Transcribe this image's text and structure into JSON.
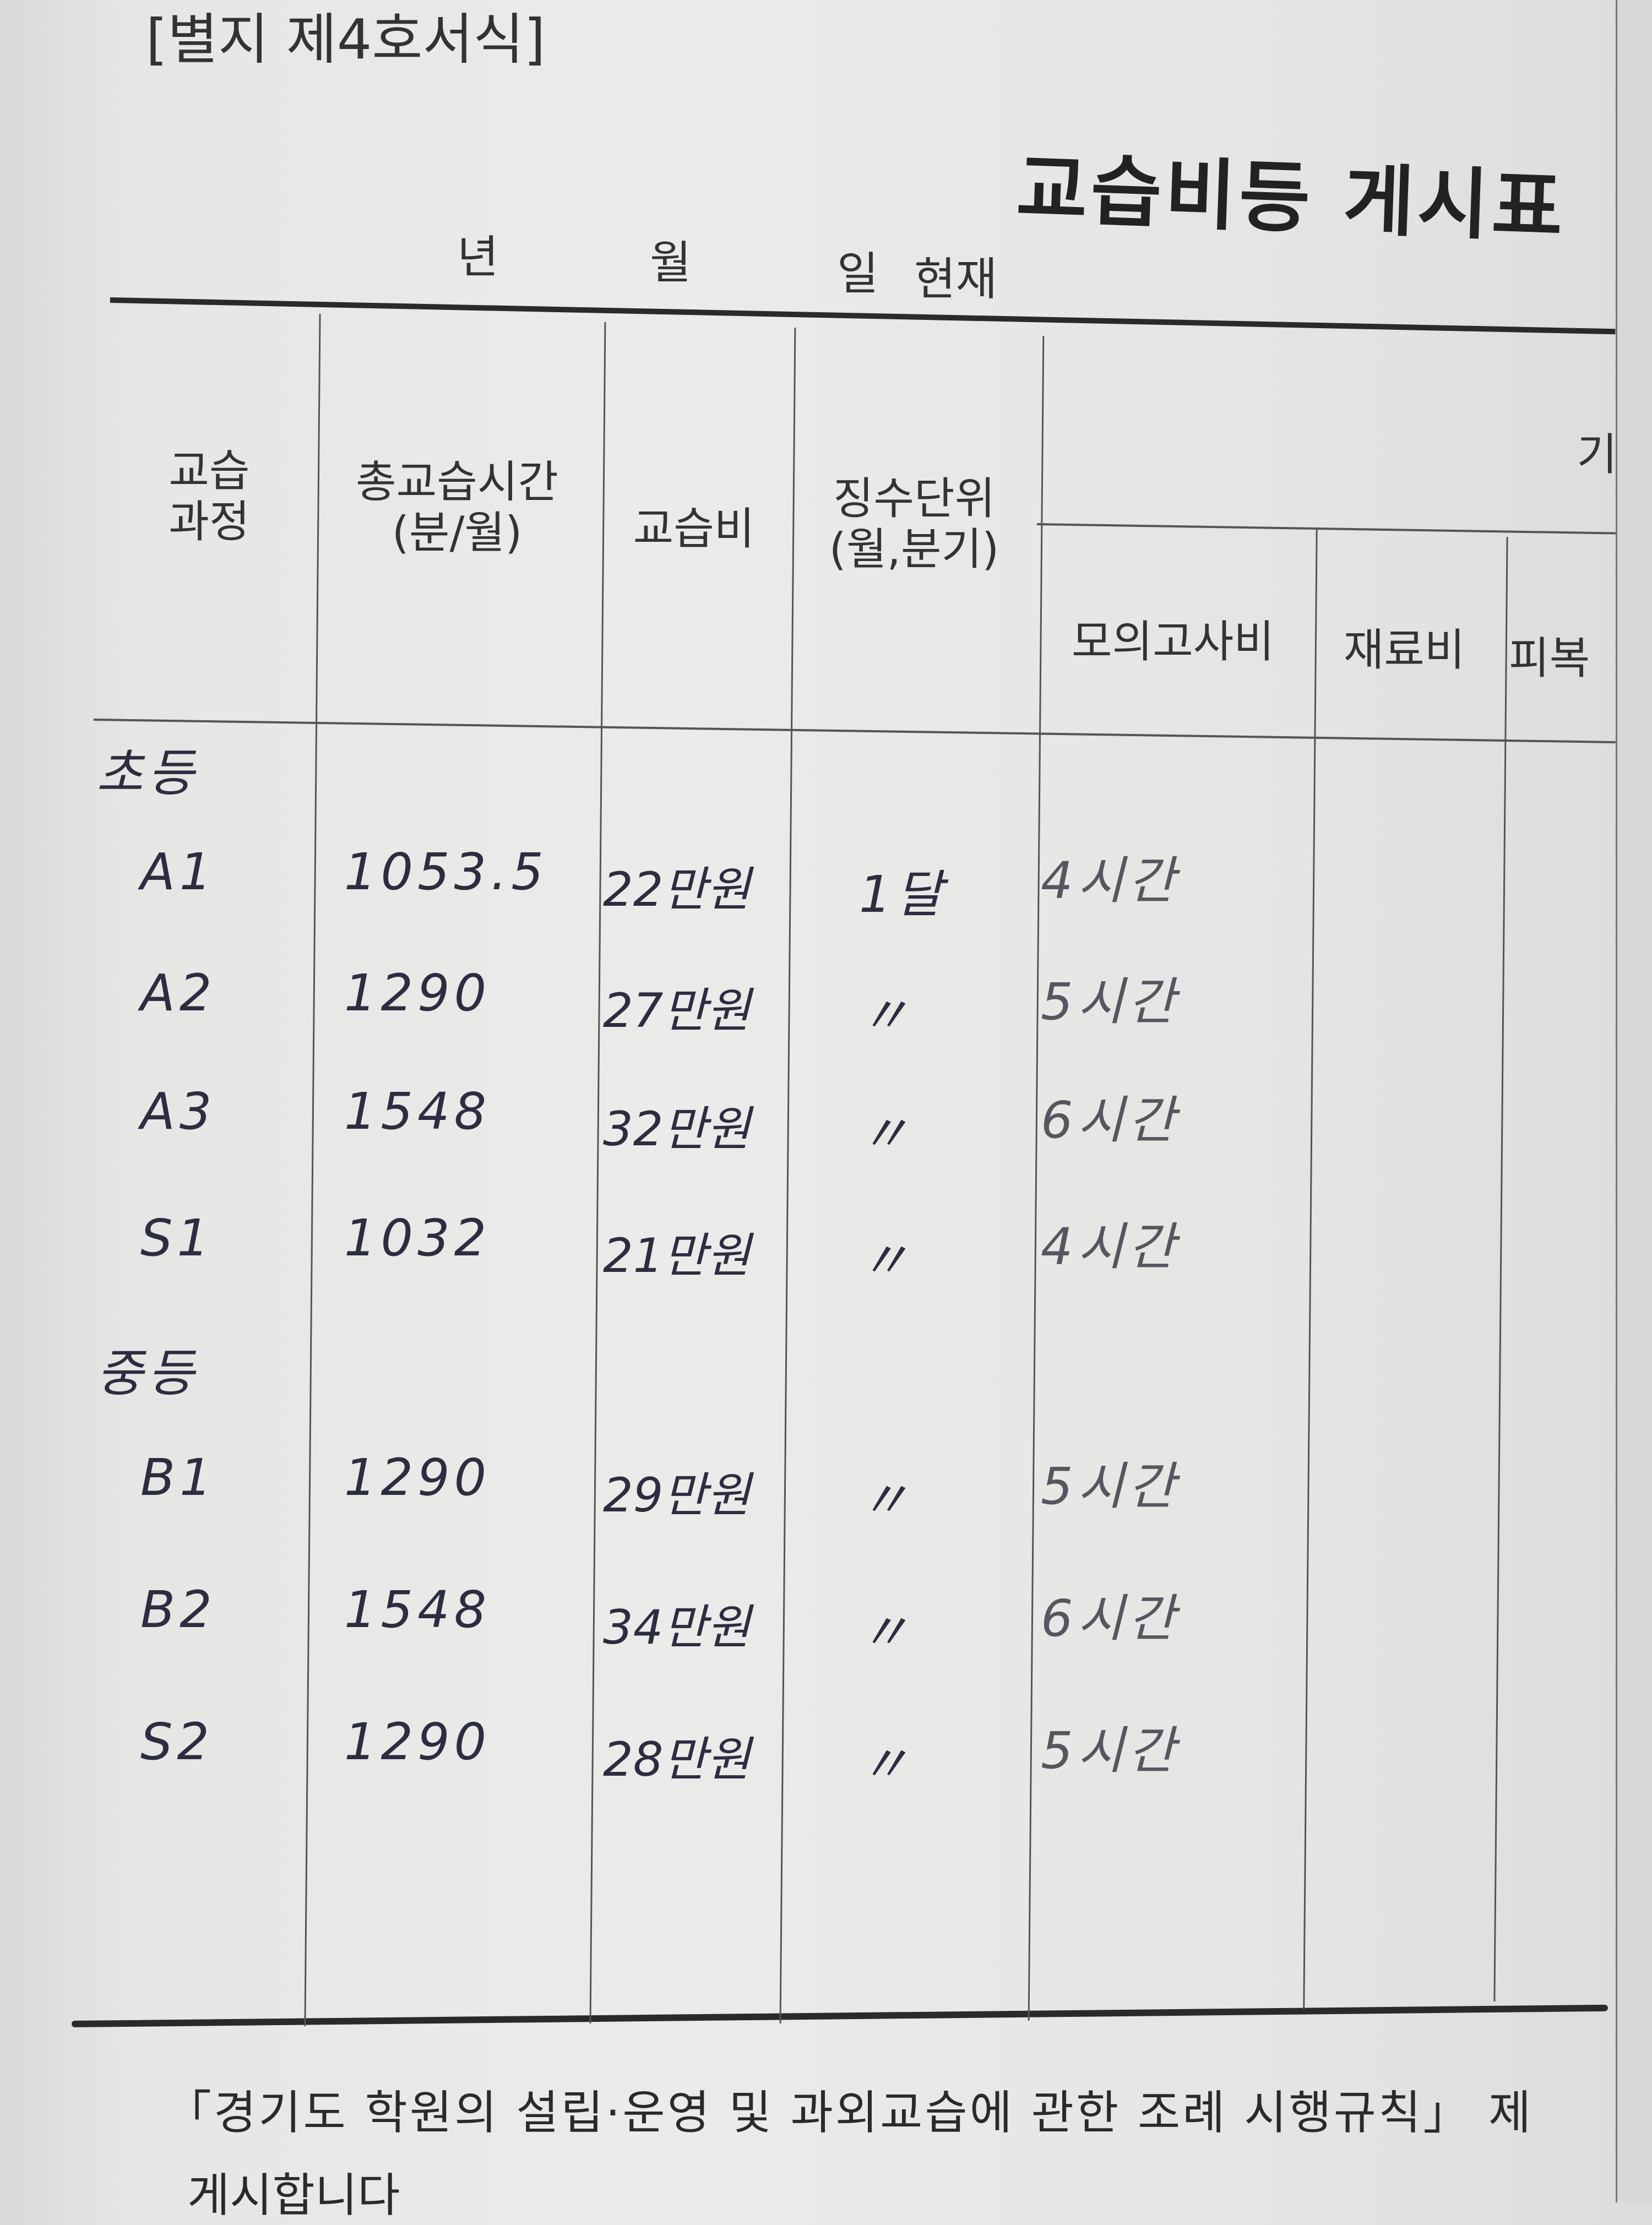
{
  "form_number": "[별지 제4호서식]",
  "title": "교습비등 게시표",
  "date_line": {
    "year": "년",
    "month": "월",
    "day": "일",
    "as_of": "현재"
  },
  "table": {
    "headers": {
      "course": "교습\n과정",
      "total_hours": "총교습시간\n(분/월)",
      "fee": "교습비",
      "collection_unit": "징수단위\n(월,분기)",
      "other_group": "기",
      "mock_exam": "모의고사비",
      "materials": "재료비",
      "clothing": "피복"
    },
    "groups": [
      {
        "label": "초등",
        "rows": [
          {
            "course": "A1",
            "total_hours": "1053.5",
            "fee": "22만원",
            "unit": "1달",
            "mock_exam": "4시간"
          },
          {
            "course": "A2",
            "total_hours": "1290",
            "fee": "27만원",
            "unit": "〃",
            "mock_exam": "5시간"
          },
          {
            "course": "A3",
            "total_hours": "1548",
            "fee": "32만원",
            "unit": "〃",
            "mock_exam": "6시간"
          },
          {
            "course": "S1",
            "total_hours": "1032",
            "fee": "21만원",
            "unit": "〃",
            "mock_exam": "4시간"
          }
        ]
      },
      {
        "label": "중등",
        "rows": [
          {
            "course": "B1",
            "total_hours": "1290",
            "fee": "29만원",
            "unit": "〃",
            "mock_exam": "5시간"
          },
          {
            "course": "B2",
            "total_hours": "1548",
            "fee": "34만원",
            "unit": "〃",
            "mock_exam": "6시간"
          },
          {
            "course": "S2",
            "total_hours": "1290",
            "fee": "28만원",
            "unit": "〃",
            "mock_exam": "5시간"
          }
        ]
      }
    ]
  },
  "footer": {
    "line1": "「경기도 학원의 설립·운영 및 과외교습에 관한 조례 시행규칙」 제",
    "line2": "게시합니다"
  }
}
